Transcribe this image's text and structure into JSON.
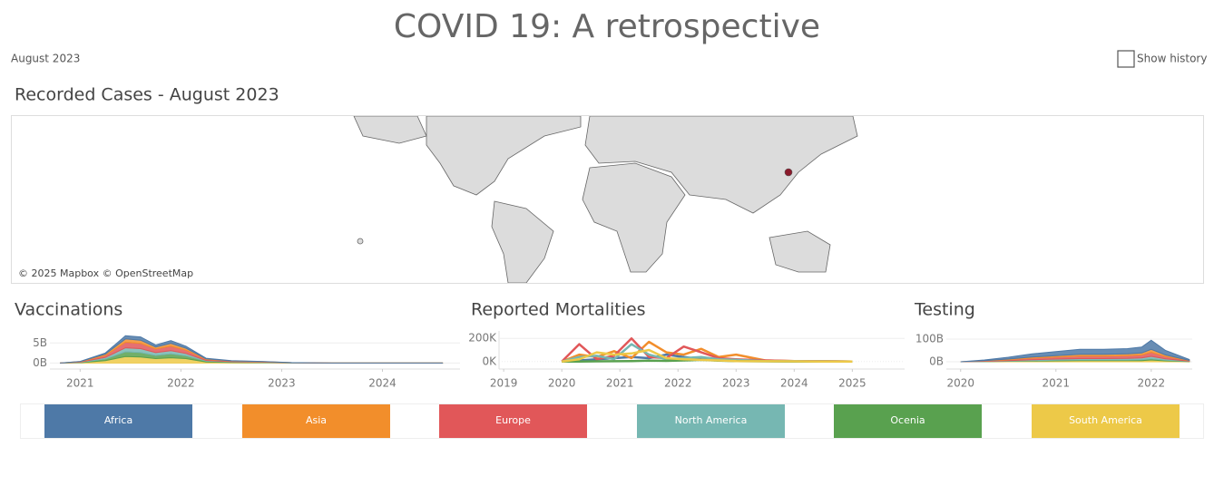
{
  "header": {
    "title": "COVID 19: A retrospective",
    "date": "August 2023",
    "show_history": "Show history"
  },
  "map": {
    "title": "Recorded Cases - August 2023",
    "attribution": "© 2025 Mapbox © OpenStreetMap"
  },
  "chart_data": [
    {
      "type": "area",
      "title": "Vaccinations",
      "x": [
        2020.8,
        2021.0,
        2021.25,
        2021.45,
        2021.6,
        2021.75,
        2021.9,
        2022.05,
        2022.25,
        2022.5,
        2022.8,
        2023.1,
        2023.5,
        2024.6
      ],
      "series": [
        {
          "name": "Africa",
          "color": "#4e79a7",
          "values": [
            0,
            0.05,
            0.3,
            0.8,
            0.8,
            0.5,
            0.7,
            0.5,
            0.15,
            0.07,
            0.05,
            0.01,
            0,
            0
          ]
        },
        {
          "name": "Asia",
          "color": "#f28e2b",
          "values": [
            0,
            0.05,
            0.3,
            0.8,
            0.8,
            0.5,
            0.7,
            0.5,
            0.15,
            0.07,
            0.05,
            0.01,
            0,
            0
          ]
        },
        {
          "name": "Europe",
          "color": "#e15759",
          "values": [
            0,
            0.08,
            0.5,
            1.4,
            1.3,
            0.9,
            1.1,
            0.8,
            0.25,
            0.12,
            0.08,
            0.02,
            0,
            0
          ]
        },
        {
          "name": "North America",
          "color": "#76b7b2",
          "values": [
            0,
            0.06,
            0.4,
            1.0,
            1.0,
            0.7,
            0.8,
            0.6,
            0.18,
            0.09,
            0.06,
            0.02,
            0,
            0
          ]
        },
        {
          "name": "Ocenia",
          "color": "#59a14f",
          "values": [
            0,
            0.07,
            0.4,
            1.2,
            1.1,
            0.8,
            1.0,
            0.7,
            0.2,
            0.1,
            0.07,
            0.02,
            0,
            0
          ]
        },
        {
          "name": "South America",
          "color": "#edc948",
          "values": [
            0,
            0.09,
            0.6,
            1.6,
            1.5,
            1.1,
            1.3,
            1.1,
            0.27,
            0.15,
            0.09,
            0.02,
            0,
            0
          ]
        }
      ],
      "xlim": [
        2020.7,
        2024.77
      ],
      "xticks": [
        2021,
        2022,
        2023,
        2024
      ],
      "ylim": [
        -1.5,
        8
      ],
      "yticks": [
        {
          "value": 0,
          "label": "0B"
        },
        {
          "value": 5,
          "label": "5B"
        }
      ],
      "grid": true
    },
    {
      "type": "line",
      "title": "Reported Mortalities",
      "x": [
        2020.0,
        2020.3,
        2020.6,
        2020.9,
        2021.2,
        2021.5,
        2021.8,
        2022.1,
        2022.4,
        2022.7,
        2023.0,
        2023.5,
        2024.0,
        2024.5,
        2025.0
      ],
      "series": [
        {
          "name": "Africa",
          "color": "#4e79a7",
          "values": [
            0,
            10000,
            20000,
            30000,
            40000,
            30000,
            60000,
            40000,
            20000,
            15000,
            10000,
            5000,
            3000,
            2000,
            0
          ]
        },
        {
          "name": "Asia",
          "color": "#f28e2b",
          "values": [
            0,
            60000,
            40000,
            90000,
            30000,
            170000,
            80000,
            60000,
            110000,
            40000,
            60000,
            10000,
            5000,
            3000,
            0
          ]
        },
        {
          "name": "Europe",
          "color": "#e15759",
          "values": [
            0,
            150000,
            20000,
            50000,
            200000,
            40000,
            30000,
            130000,
            80000,
            30000,
            20000,
            10000,
            5000,
            3000,
            0
          ]
        },
        {
          "name": "North America",
          "color": "#76b7b2",
          "values": [
            0,
            40000,
            50000,
            20000,
            150000,
            60000,
            20000,
            30000,
            40000,
            20000,
            15000,
            5000,
            3000,
            2000,
            0
          ]
        },
        {
          "name": "Ocenia",
          "color": "#59a14f",
          "values": [
            0,
            1000,
            2000,
            3000,
            5000,
            8000,
            6000,
            10000,
            15000,
            8000,
            4000,
            2000,
            1000,
            500,
            0
          ]
        },
        {
          "name": "South America",
          "color": "#edc948",
          "values": [
            0,
            20000,
            80000,
            60000,
            70000,
            100000,
            30000,
            20000,
            15000,
            10000,
            5000,
            3000,
            2000,
            1000,
            0
          ]
        }
      ],
      "xlim": [
        2018.92,
        2025.9
      ],
      "xticks": [
        2019,
        2020,
        2021,
        2022,
        2023,
        2024,
        2025
      ],
      "ylim": [
        -64000,
        264000
      ],
      "yticks": [
        {
          "value": 0,
          "label": "0K"
        },
        {
          "value": 200000,
          "label": "200K"
        }
      ],
      "grid": true
    },
    {
      "type": "area",
      "title": "Testing",
      "x": [
        2020.0,
        2020.25,
        2020.5,
        2020.75,
        2021.0,
        2021.25,
        2021.5,
        2021.75,
        2021.9,
        2022.0,
        2022.15,
        2022.4
      ],
      "series": [
        {
          "name": "Africa",
          "color": "#4e79a7",
          "values": [
            0,
            3,
            8,
            14,
            18,
            22,
            22,
            23,
            26,
            40,
            20,
            4
          ]
        },
        {
          "name": "Asia",
          "color": "#f28e2b",
          "values": [
            0,
            1,
            3,
            5,
            6,
            8,
            8,
            8,
            9,
            13,
            7,
            1
          ]
        },
        {
          "name": "Europe",
          "color": "#e15759",
          "values": [
            0,
            2,
            4,
            7,
            9,
            11,
            11,
            12,
            13,
            18,
            10,
            2
          ]
        },
        {
          "name": "North America",
          "color": "#76b7b2",
          "values": [
            0,
            1,
            2,
            4,
            5,
            6,
            6,
            7,
            8,
            11,
            6,
            1
          ]
        },
        {
          "name": "Ocenia",
          "color": "#59a14f",
          "values": [
            0,
            0.5,
            1,
            2,
            3,
            3,
            3,
            3,
            4,
            5,
            3,
            1
          ]
        },
        {
          "name": "South America",
          "color": "#edc948",
          "values": [
            0,
            0.5,
            2,
            3,
            4,
            5,
            5,
            5,
            5,
            8,
            4,
            1
          ]
        }
      ],
      "xlim": [
        2019.85,
        2022.43
      ],
      "xticks": [
        2020,
        2021,
        2022
      ],
      "ylim": [
        -32,
        136
      ],
      "yticks": [
        {
          "value": 0,
          "label": "0B"
        },
        {
          "value": 100,
          "label": "100B"
        }
      ],
      "grid": true
    }
  ]
}
